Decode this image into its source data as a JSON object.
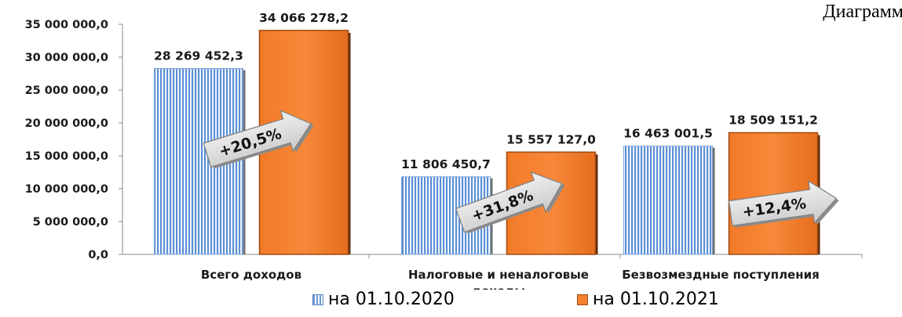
{
  "corner_text": "Диаграмм",
  "colors": {
    "series_2020": "#5b8fd6",
    "series_2021": "#f57f2c",
    "series_2021_dark": "#a14b13",
    "arrow_fill": "#d9d9d9",
    "arrow_stroke": "#7f7f7f",
    "axis": "#8a8a8a"
  },
  "chart_data": {
    "type": "bar",
    "categories": [
      "Всего доходов",
      "Налоговые и неналоговые доходы",
      "Безвозмездные поступления"
    ],
    "category_lines": [
      [
        "Всего доходов"
      ],
      [
        "Налоговые и неналоговые",
        "доходы"
      ],
      [
        "Безвозмездные поступления"
      ]
    ],
    "series": [
      {
        "name": "на 01.10.2020",
        "values": [
          28269452.3,
          11806450.7,
          16463001.5
        ],
        "value_labels": [
          "28 269 452,3",
          "11 806 450,7",
          "16 463 001,5"
        ]
      },
      {
        "name": "на 01.10.2021",
        "values": [
          34066278.2,
          15557127.0,
          18509151.2
        ],
        "value_labels": [
          "34 066 278,2",
          "15 557 127,0",
          "18 509 151,2"
        ]
      }
    ],
    "growth_labels": [
      "+20,5%",
      "+31,8%",
      "+12,4%"
    ],
    "ylim": [
      0,
      35000000
    ],
    "yticks": [
      0,
      5000000,
      10000000,
      15000000,
      20000000,
      25000000,
      30000000,
      35000000
    ],
    "ytick_labels": [
      "0,0",
      "5 000 000,0",
      "10 000 000,0",
      "15 000 000,0",
      "20 000 000,0",
      "25 000 000,0",
      "30 000 000,0",
      "35 000 000,0"
    ],
    "xlabel": "",
    "ylabel": "",
    "grid": false,
    "legend_position": "bottom"
  }
}
